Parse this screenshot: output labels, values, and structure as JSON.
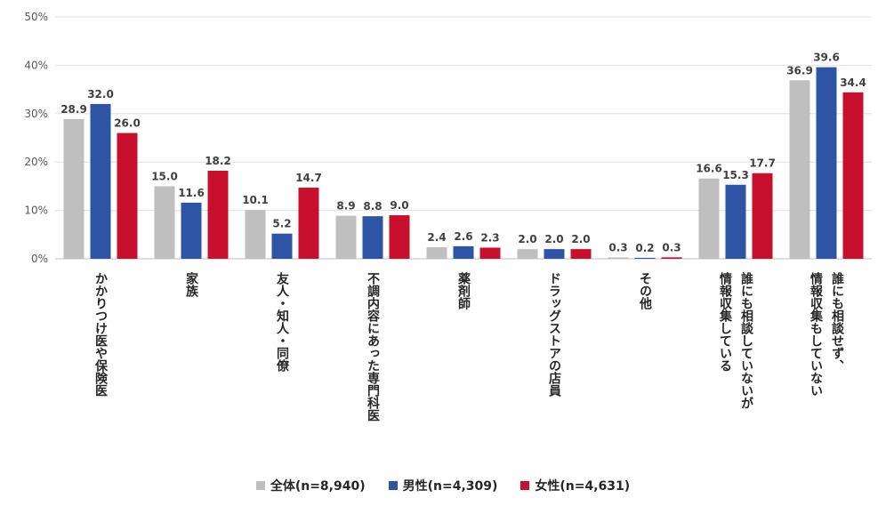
{
  "chart_data": {
    "type": "bar",
    "title": "",
    "xlabel": "",
    "ylabel": "",
    "ylim": [
      0,
      50
    ],
    "yticks": [
      0,
      10,
      20,
      30,
      40,
      50
    ],
    "ytick_labels": [
      "0%",
      "10%",
      "20%",
      "30%",
      "40%",
      "50%"
    ],
    "grid": true,
    "legend_position": "bottom",
    "categories": [
      [
        "かかりつけ医や保険医"
      ],
      [
        "家族"
      ],
      [
        "友人・知人・同僚"
      ],
      [
        "不調内容にあった専門科医"
      ],
      [
        "薬剤師"
      ],
      [
        "ドラッグストアの店員"
      ],
      [
        "その他"
      ],
      [
        "誰にも相談していないが",
        "情報収集している"
      ],
      [
        "誰にも相談せず、",
        "情報収集もしていない"
      ]
    ],
    "series": [
      {
        "name": "全体(n=8,940)",
        "color": "#bfbfbf",
        "values": [
          28.9,
          15.0,
          10.1,
          8.9,
          2.4,
          2.0,
          0.3,
          16.6,
          36.9
        ],
        "labels": [
          "28.9",
          "15.0",
          "10.1",
          "8.9",
          "2.4",
          "2.0",
          "0.3",
          "16.6",
          "36.9"
        ]
      },
      {
        "name": "男性(n=4,309)",
        "color": "#2e55a5",
        "values": [
          32.0,
          11.6,
          5.2,
          8.8,
          2.6,
          2.0,
          0.2,
          15.3,
          39.6
        ],
        "labels": [
          "32.0",
          "11.6",
          "5.2",
          "8.8",
          "2.6",
          "2.0",
          "0.2",
          "15.3",
          "39.6"
        ]
      },
      {
        "name": "女性(n=4,631)",
        "color": "#c8102e",
        "values": [
          26.0,
          18.2,
          14.7,
          9.0,
          2.3,
          2.0,
          0.3,
          17.7,
          34.4
        ],
        "labels": [
          "26.0",
          "18.2",
          "14.7",
          "9.0",
          "2.3",
          "2.0",
          "0.3",
          "17.7",
          "34.4"
        ]
      }
    ]
  }
}
